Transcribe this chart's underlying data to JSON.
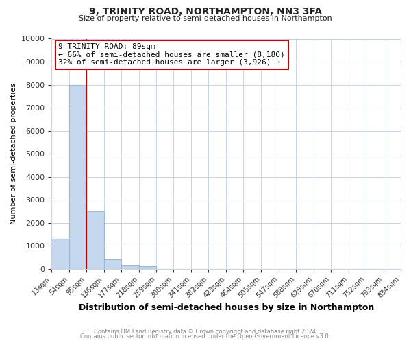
{
  "title": "9, TRINITY ROAD, NORTHAMPTON, NN3 3FA",
  "subtitle": "Size of property relative to semi-detached houses in Northampton",
  "xlabel": "Distribution of semi-detached houses by size in Northampton",
  "ylabel": "Number of semi-detached properties",
  "bin_edges": [
    13,
    54,
    95,
    136,
    177,
    218,
    259,
    300,
    341,
    382,
    423,
    464,
    505,
    547,
    588,
    629,
    670,
    711,
    752,
    793,
    834
  ],
  "bin_labels": [
    "13sqm",
    "54sqm",
    "95sqm",
    "136sqm",
    "177sqm",
    "218sqm",
    "259sqm",
    "300sqm",
    "341sqm",
    "382sqm",
    "423sqm",
    "464sqm",
    "505sqm",
    "547sqm",
    "588sqm",
    "629sqm",
    "670sqm",
    "711sqm",
    "752sqm",
    "793sqm",
    "834sqm"
  ],
  "counts": [
    1300,
    8000,
    2500,
    400,
    150,
    100,
    0,
    0,
    0,
    0,
    0,
    0,
    0,
    0,
    0,
    0,
    0,
    0,
    0,
    0
  ],
  "bar_color": "#c5d8ed",
  "bar_edge_color": "#9ab8d8",
  "vline_x": 95,
  "vline_color": "#cc0000",
  "annotation_title": "9 TRINITY ROAD: 89sqm",
  "annotation_line1": "← 66% of semi-detached houses are smaller (8,180)",
  "annotation_line2": "32% of semi-detached houses are larger (3,926) →",
  "annotation_box_facecolor": "white",
  "annotation_box_edgecolor": "#cc0000",
  "ylim": [
    0,
    10000
  ],
  "yticks": [
    0,
    1000,
    2000,
    3000,
    4000,
    5000,
    6000,
    7000,
    8000,
    9000,
    10000
  ],
  "grid_color": "#c8d4e8",
  "background_color": "#ffffff",
  "title_fontsize": 10,
  "subtitle_fontsize": 8,
  "footer_line1": "Contains HM Land Registry data © Crown copyright and database right 2024.",
  "footer_line2": "Contains public sector information licensed under the Open Government Licence v3.0."
}
